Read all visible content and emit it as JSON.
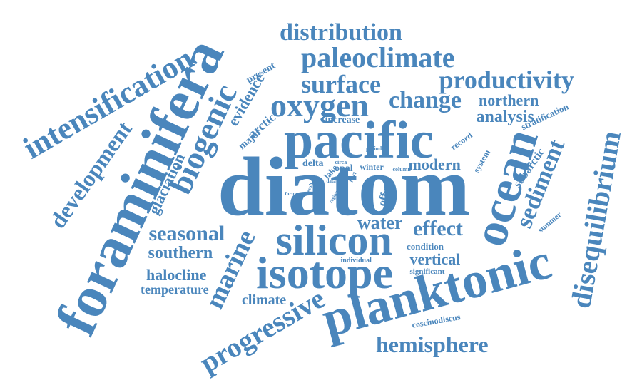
{
  "color": "#4a86bc",
  "words": [
    {
      "text": "diatom",
      "rotate": 0
    },
    {
      "text": "pacific",
      "rotate": 0
    },
    {
      "text": "foraminifera",
      "rotate": -65
    },
    {
      "text": "planktonic",
      "rotate": -15
    },
    {
      "text": "isotope",
      "rotate": 0
    },
    {
      "text": "silicon",
      "rotate": 0
    },
    {
      "text": "ocean",
      "rotate": -73
    },
    {
      "text": "oxygen",
      "rotate": 0
    },
    {
      "text": "paleoclimate",
      "rotate": 0
    },
    {
      "text": "productivity",
      "rotate": 0
    },
    {
      "text": "surface",
      "rotate": 0
    },
    {
      "text": "distribution",
      "rotate": 0
    },
    {
      "text": "intensification",
      "rotate": -30
    },
    {
      "text": "biogenic",
      "rotate": -65
    },
    {
      "text": "disequilibrium",
      "rotate": -80
    },
    {
      "text": "development",
      "rotate": -55
    },
    {
      "text": "progressive",
      "rotate": -30
    },
    {
      "text": "marine",
      "rotate": -65
    },
    {
      "text": "sediment",
      "rotate": -68
    },
    {
      "text": "hemisphere",
      "rotate": 0
    },
    {
      "text": "seasonal",
      "rotate": 0
    },
    {
      "text": "change",
      "rotate": 0
    },
    {
      "text": "effect",
      "rotate": 0
    },
    {
      "text": "southern",
      "rotate": 0
    },
    {
      "text": "analysis",
      "rotate": 0
    },
    {
      "text": "northern",
      "rotate": 0
    },
    {
      "text": "modern",
      "rotate": 0
    },
    {
      "text": "water",
      "rotate": 0
    },
    {
      "text": "vertical",
      "rotate": 0
    },
    {
      "text": "climate",
      "rotate": 0
    },
    {
      "text": "halocline",
      "rotate": 0
    },
    {
      "text": "temperature",
      "rotate": 0
    },
    {
      "text": "glaciation",
      "rotate": -65
    },
    {
      "text": "evidence",
      "rotate": -60
    },
    {
      "text": "subarctic",
      "rotate": -55
    },
    {
      "text": "arctic",
      "rotate": -40
    },
    {
      "text": "major",
      "rotate": -40
    },
    {
      "text": "present",
      "rotate": -30
    },
    {
      "text": "increase",
      "rotate": 0
    },
    {
      "text": "stratification",
      "rotate": -25
    },
    {
      "text": "record",
      "rotate": -35
    },
    {
      "text": "system",
      "rotate": -60
    },
    {
      "text": "summer",
      "rotate": -40
    },
    {
      "text": "opal",
      "rotate": 0
    },
    {
      "text": "winter",
      "rotate": 0
    },
    {
      "text": "lake",
      "rotate": -50
    },
    {
      "text": "delta",
      "rotate": 0
    },
    {
      "text": "offset",
      "rotate": -75
    },
    {
      "text": "coscinodiscus",
      "rotate": -10
    },
    {
      "text": "significant",
      "rotate": 0
    },
    {
      "text": "condition",
      "rotate": 0
    },
    {
      "text": "individual",
      "rotate": 0
    },
    {
      "text": "period",
      "rotate": 0
    },
    {
      "text": "circa",
      "rotate": 0
    },
    {
      "text": "column",
      "rotate": 0
    },
    {
      "text": "part",
      "rotate": -60
    },
    {
      "text": "region",
      "rotate": -60
    },
    {
      "text": "data",
      "rotate": 0
    },
    {
      "text": "result",
      "rotate": -70
    },
    {
      "text": "forum",
      "rotate": 0
    }
  ]
}
